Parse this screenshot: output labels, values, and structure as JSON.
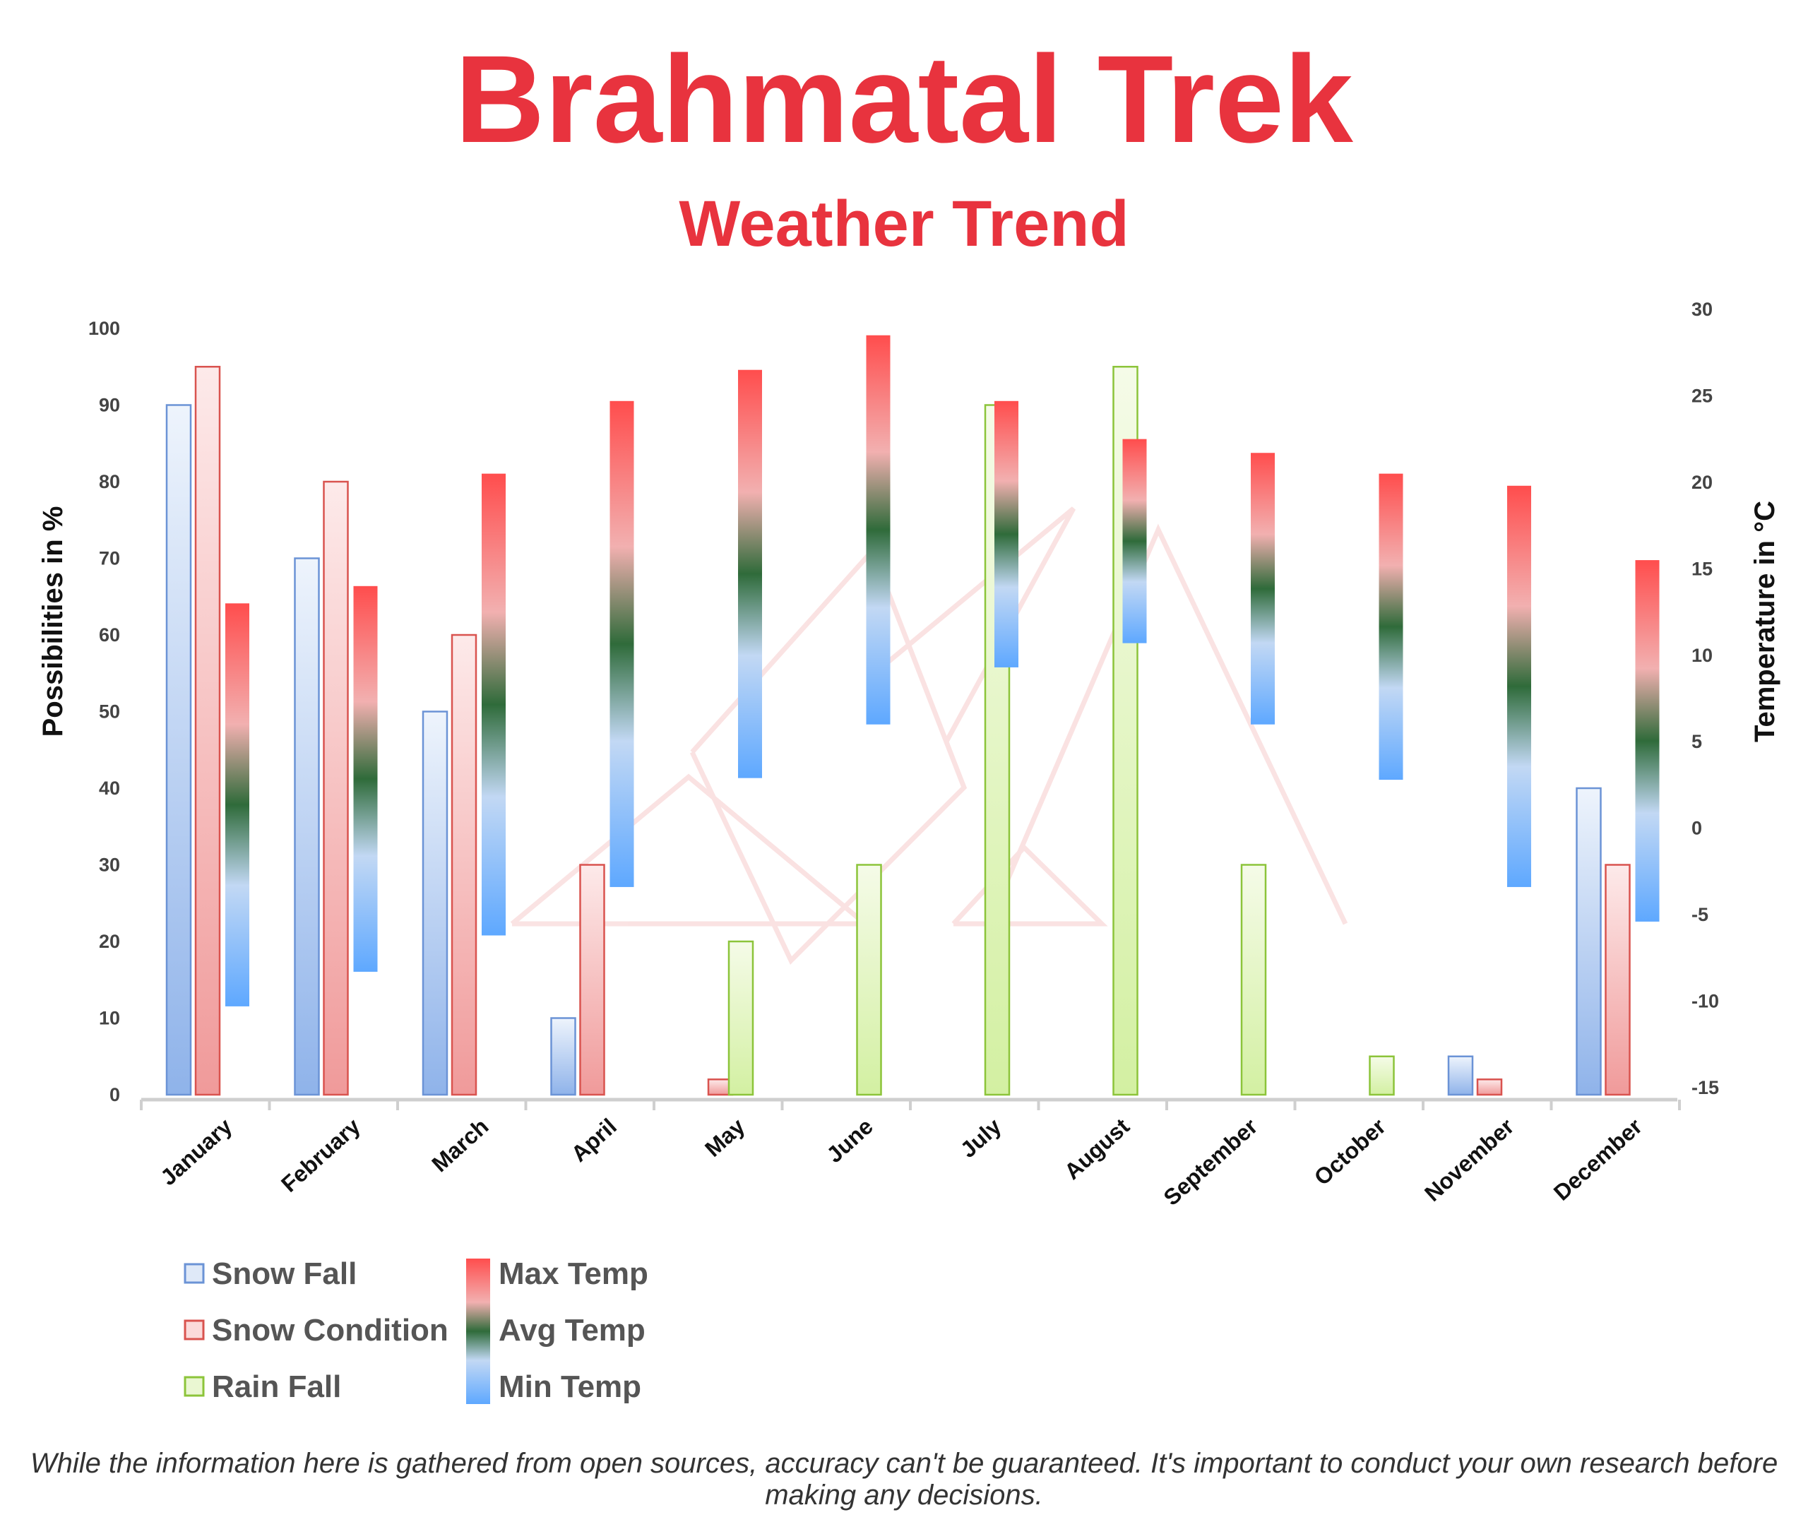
{
  "title": "Brahmatal Trek",
  "subtitle": "Weather Trend",
  "disclaimer": "While the information here is gathered from open sources, accuracy can't be guaranteed. It's important to conduct your own research before making any decisions.",
  "colors": {
    "title": "#e8333e",
    "snow_fall": "#6b93d6",
    "snow_condition": "#d9534f",
    "rain_fall": "#8cc43a",
    "max_temp": "#ff4d4d",
    "avg_temp": "#2f6b3a",
    "min_temp": "#5ea8ff"
  },
  "chart_data": {
    "type": "bar",
    "categories": [
      "January",
      "February",
      "March",
      "April",
      "May",
      "June",
      "July",
      "August",
      "September",
      "October",
      "November",
      "December"
    ],
    "series": [
      {
        "name": "Snow Fall",
        "axis": "left",
        "values": [
          90,
          70,
          50,
          10,
          0,
          0,
          0,
          0,
          0,
          0,
          5,
          40
        ]
      },
      {
        "name": "Snow Condition",
        "axis": "left",
        "values": [
          95,
          80,
          60,
          30,
          2,
          0,
          0,
          0,
          0,
          0,
          2,
          30
        ]
      },
      {
        "name": "Rain Fall",
        "axis": "left",
        "values": [
          0,
          0,
          0,
          0,
          20,
          30,
          90,
          95,
          30,
          5,
          0,
          0
        ]
      }
    ],
    "temperature": {
      "name_max": "Max Temp",
      "name_avg": "Avg Temp",
      "name_min": "Min Temp",
      "max": [
        13,
        14,
        20.5,
        24.7,
        26.5,
        28.5,
        24.7,
        22.5,
        21.7,
        20.5,
        19.8,
        15.5
      ],
      "min": [
        -10.3,
        -8.3,
        -6.2,
        -3.4,
        2.9,
        6,
        9.3,
        10.7,
        6,
        2.8,
        -3.4,
        -5.4
      ]
    },
    "left_axis": {
      "label": "Possibilities in %",
      "range": [
        0,
        100
      ],
      "ticks": [
        "0",
        "10",
        "20",
        "30",
        "40",
        "50",
        "60",
        "70",
        "80",
        "90",
        "100"
      ]
    },
    "right_axis": {
      "label": "Temperature in °C",
      "range": [
        -15,
        30
      ],
      "ticks": [
        "-15",
        "-10",
        "-5",
        "0",
        "5",
        "10",
        "15",
        "20",
        "25",
        "30"
      ]
    },
    "legend": {
      "position": "bottom-left",
      "items": [
        "Snow Fall",
        "Snow Condition",
        "Rain Fall",
        "Max Temp",
        "Avg Temp",
        "Min Temp"
      ]
    },
    "grid": false
  }
}
